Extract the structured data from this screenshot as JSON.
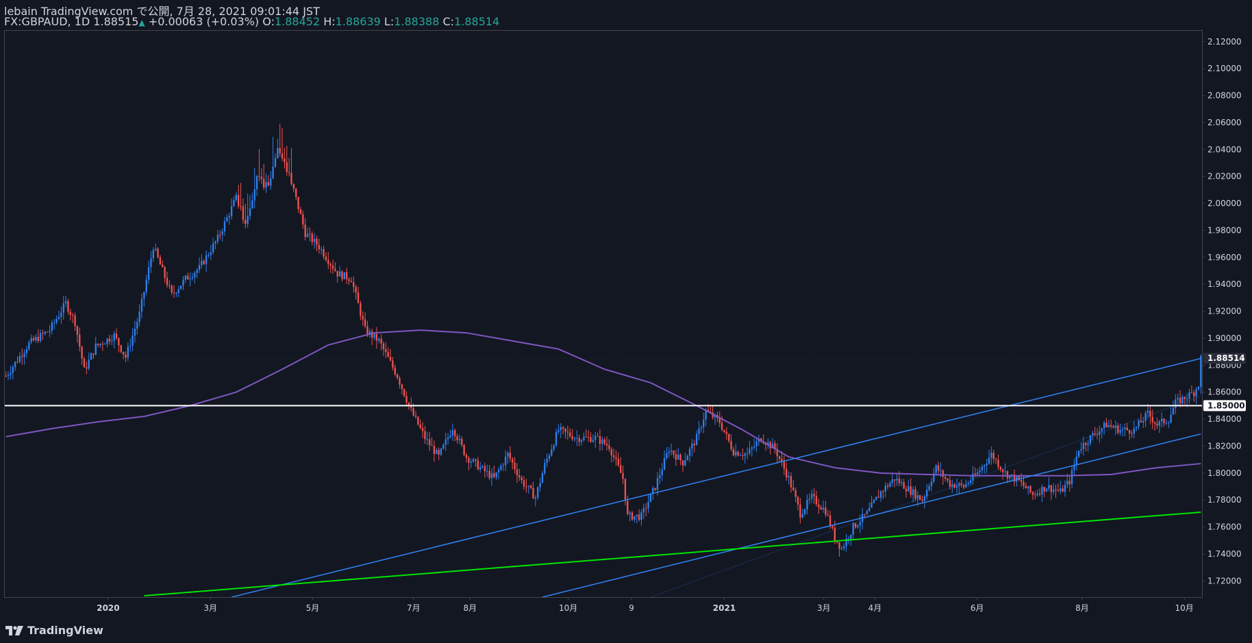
{
  "header": {
    "publish_line": "lebain TradingView.com で公開, 7月 28, 2021 09:01:44 JST",
    "symbol": "FX:GBPAUD, 1D",
    "last": "1.88515",
    "change": "+0.00063 (+0.03%)",
    "o_label": "O:",
    "o_val": "1.88452",
    "h_label": "H:",
    "h_val": "1.88639",
    "l_label": "L:",
    "l_val": "1.88388",
    "c_label": "C:",
    "c_val": "1.88514"
  },
  "footer": {
    "brand": "TradingView"
  },
  "colors": {
    "background": "#131722",
    "up_candle": "#2f80ed",
    "down_candle": "#ef5350",
    "ma_line": "#7e57c2",
    "trend_lines": "#2f80ed",
    "support_line": "#00e600",
    "level_line": "#ffffff",
    "axis_text": "#d1d4dc"
  },
  "chart_data": {
    "type": "candlestick",
    "symbol": "FX:GBPAUD",
    "timeframe": "1D",
    "ylim": [
      1.708,
      2.128
    ],
    "y_ticks": [
      "2.12000",
      "2.10000",
      "2.08000",
      "2.06000",
      "2.04000",
      "2.02000",
      "2.00000",
      "1.98000",
      "1.96000",
      "1.94000",
      "1.92000",
      "1.90000",
      "1.88000",
      "1.86000",
      "1.84000",
      "1.82000",
      "1.80000",
      "1.78000",
      "1.76000",
      "1.74000",
      "1.72000"
    ],
    "x_ticks": [
      "2020",
      "3月",
      "5月",
      "7月",
      "8月",
      "10月",
      "9",
      "2021",
      "3月",
      "4月",
      "6月",
      "8月",
      "10月"
    ],
    "last_price_label": "1.88514",
    "level_label": "1.85000",
    "grid": false,
    "price_path": [
      [
        0,
        1.872
      ],
      [
        10,
        1.896
      ],
      [
        19,
        1.906
      ],
      [
        26,
        1.926
      ],
      [
        30,
        1.912
      ],
      [
        34,
        1.876
      ],
      [
        39,
        1.894
      ],
      [
        47,
        1.902
      ],
      [
        52,
        1.886
      ],
      [
        58,
        1.918
      ],
      [
        64,
        1.968
      ],
      [
        72,
        1.932
      ],
      [
        78,
        1.944
      ],
      [
        84,
        1.952
      ],
      [
        92,
        1.974
      ],
      [
        100,
        2.004
      ],
      [
        104,
        1.986
      ],
      [
        109,
        2.018
      ],
      [
        114,
        2.012
      ],
      [
        118,
        2.042
      ],
      [
        124,
        2.016
      ],
      [
        130,
        1.978
      ],
      [
        136,
        1.968
      ],
      [
        144,
        1.948
      ],
      [
        150,
        1.944
      ],
      [
        156,
        1.906
      ],
      [
        162,
        1.898
      ],
      [
        170,
        1.872
      ],
      [
        176,
        1.846
      ],
      [
        182,
        1.826
      ],
      [
        188,
        1.812
      ],
      [
        194,
        1.834
      ],
      [
        200,
        1.812
      ],
      [
        206,
        1.804
      ],
      [
        212,
        1.796
      ],
      [
        218,
        1.814
      ],
      [
        224,
        1.794
      ],
      [
        230,
        1.782
      ],
      [
        234,
        1.806
      ],
      [
        240,
        1.832
      ],
      [
        248,
        1.826
      ],
      [
        256,
        1.826
      ],
      [
        262,
        1.82
      ],
      [
        268,
        1.796
      ],
      [
        270,
        1.768
      ],
      [
        276,
        1.768
      ],
      [
        282,
        1.79
      ],
      [
        288,
        1.818
      ],
      [
        294,
        1.808
      ],
      [
        300,
        1.826
      ],
      [
        304,
        1.846
      ],
      [
        310,
        1.838
      ],
      [
        316,
        1.816
      ],
      [
        322,
        1.814
      ],
      [
        328,
        1.826
      ],
      [
        334,
        1.818
      ],
      [
        340,
        1.796
      ],
      [
        345,
        1.77
      ],
      [
        350,
        1.782
      ],
      [
        356,
        1.772
      ],
      [
        360,
        1.752
      ],
      [
        363,
        1.744
      ],
      [
        368,
        1.76
      ],
      [
        374,
        1.77
      ],
      [
        380,
        1.786
      ],
      [
        386,
        1.796
      ],
      [
        392,
        1.788
      ],
      [
        398,
        1.78
      ],
      [
        404,
        1.804
      ],
      [
        410,
        1.792
      ],
      [
        416,
        1.79
      ],
      [
        422,
        1.8
      ],
      [
        428,
        1.814
      ],
      [
        434,
        1.8
      ],
      [
        440,
        1.794
      ],
      [
        446,
        1.784
      ],
      [
        452,
        1.79
      ],
      [
        458,
        1.786
      ],
      [
        462,
        1.794
      ],
      [
        466,
        1.818
      ],
      [
        472,
        1.828
      ],
      [
        478,
        1.836
      ],
      [
        484,
        1.832
      ],
      [
        490,
        1.832
      ],
      [
        496,
        1.844
      ],
      [
        500,
        1.836
      ],
      [
        505,
        1.84
      ],
      [
        508,
        1.852
      ],
      [
        512,
        1.856
      ],
      [
        516,
        1.86
      ],
      [
        518,
        1.866
      ],
      [
        519,
        1.8851
      ]
    ],
    "moving_average": {
      "type": "SMA",
      "points": [
        [
          0,
          1.827
        ],
        [
          20,
          1.833
        ],
        [
          40,
          1.838
        ],
        [
          60,
          1.842
        ],
        [
          80,
          1.85
        ],
        [
          100,
          1.86
        ],
        [
          120,
          1.877
        ],
        [
          140,
          1.895
        ],
        [
          160,
          1.904
        ],
        [
          180,
          1.906
        ],
        [
          200,
          1.904
        ],
        [
          220,
          1.898
        ],
        [
          240,
          1.892
        ],
        [
          260,
          1.877
        ],
        [
          280,
          1.867
        ],
        [
          300,
          1.85
        ],
        [
          320,
          1.832
        ],
        [
          340,
          1.812
        ],
        [
          360,
          1.804
        ],
        [
          380,
          1.8
        ],
        [
          400,
          1.799
        ],
        [
          420,
          1.798
        ],
        [
          440,
          1.798
        ],
        [
          460,
          1.798
        ],
        [
          480,
          1.799
        ],
        [
          500,
          1.804
        ],
        [
          519,
          1.807
        ]
      ]
    },
    "lines": [
      {
        "name": "upper-trendline",
        "from": [
          98,
          1.708
        ],
        "to": [
          519,
          1.885
        ]
      },
      {
        "name": "lower-trendline",
        "from": [
          233,
          1.708
        ],
        "to": [
          519,
          1.829
        ]
      },
      {
        "name": "support-trendline",
        "from": [
          60,
          1.709
        ],
        "to": [
          519,
          1.771
        ]
      },
      {
        "name": "horizontal-level",
        "from": [
          0,
          1.85
        ],
        "to": [
          519,
          1.85
        ]
      }
    ]
  }
}
